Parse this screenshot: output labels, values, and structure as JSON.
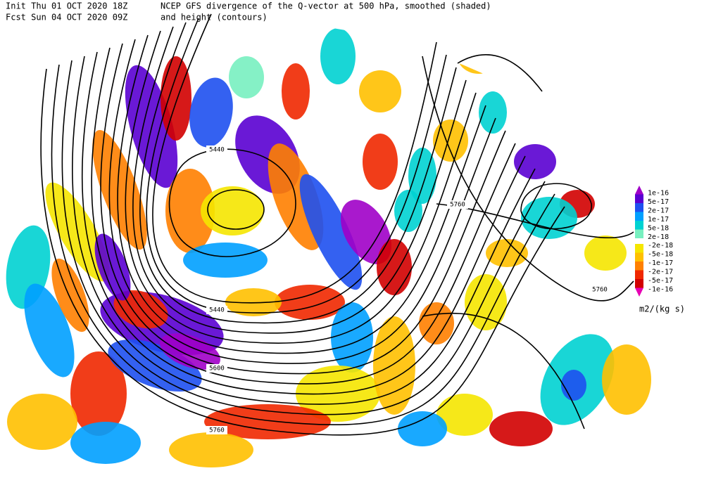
{
  "header": {
    "init": "Init  Thu 01 OCT 2020 18Z",
    "fcst": "Fcst Sun 04 OCT 2020 09Z",
    "title_line1": "NCEP GFS divergence of the Q-vector at 500 hPa, smoothed (shaded)",
    "title_line2": "and height (contours)"
  },
  "legend": {
    "labels": [
      "1e-16",
      "5e-17",
      "2e-17",
      "1e-17",
      "5e-18",
      "2e-18",
      "-2e-18",
      "-5e-18",
      "-1e-17",
      "-2e-17",
      "-5e-17",
      "-1e-16"
    ],
    "colors": [
      "#a000c8",
      "#5a00d2",
      "#1e50f0",
      "#00a0ff",
      "#00d2d2",
      "#78f0c0",
      "#f5e600",
      "#ffc000",
      "#ff8000",
      "#f02800",
      "#d20000",
      "#e600b4"
    ],
    "unit": "m2/(kg s)"
  },
  "contour_labels": [
    5440,
    5760,
    5440,
    5600,
    5760,
    5760
  ]
}
